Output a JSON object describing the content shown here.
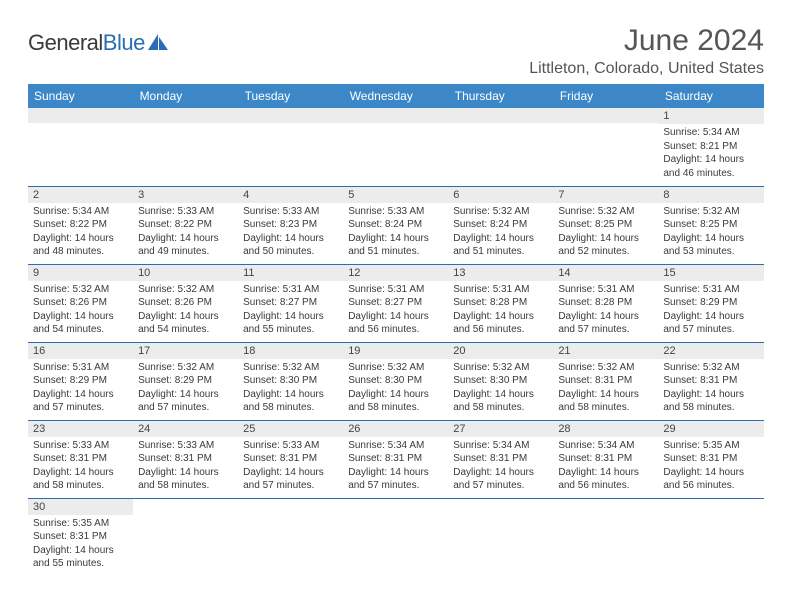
{
  "logo": {
    "text1": "General",
    "text2": "Blue"
  },
  "title": "June 2024",
  "location": "Littleton, Colorado, United States",
  "colors": {
    "header_bg": "#3b87c8",
    "header_text": "#ffffff",
    "border": "#2a6db5",
    "daynum_bg": "#ececec",
    "body_text": "#3a3a3a",
    "title_text": "#555555"
  },
  "days_of_week": [
    "Sunday",
    "Monday",
    "Tuesday",
    "Wednesday",
    "Thursday",
    "Friday",
    "Saturday"
  ],
  "weeks": [
    [
      {
        "n": "",
        "lines": []
      },
      {
        "n": "",
        "lines": []
      },
      {
        "n": "",
        "lines": []
      },
      {
        "n": "",
        "lines": []
      },
      {
        "n": "",
        "lines": []
      },
      {
        "n": "",
        "lines": []
      },
      {
        "n": "1",
        "lines": [
          "Sunrise: 5:34 AM",
          "Sunset: 8:21 PM",
          "Daylight: 14 hours and 46 minutes."
        ]
      }
    ],
    [
      {
        "n": "2",
        "lines": [
          "Sunrise: 5:34 AM",
          "Sunset: 8:22 PM",
          "Daylight: 14 hours and 48 minutes."
        ]
      },
      {
        "n": "3",
        "lines": [
          "Sunrise: 5:33 AM",
          "Sunset: 8:22 PM",
          "Daylight: 14 hours and 49 minutes."
        ]
      },
      {
        "n": "4",
        "lines": [
          "Sunrise: 5:33 AM",
          "Sunset: 8:23 PM",
          "Daylight: 14 hours and 50 minutes."
        ]
      },
      {
        "n": "5",
        "lines": [
          "Sunrise: 5:33 AM",
          "Sunset: 8:24 PM",
          "Daylight: 14 hours and 51 minutes."
        ]
      },
      {
        "n": "6",
        "lines": [
          "Sunrise: 5:32 AM",
          "Sunset: 8:24 PM",
          "Daylight: 14 hours and 51 minutes."
        ]
      },
      {
        "n": "7",
        "lines": [
          "Sunrise: 5:32 AM",
          "Sunset: 8:25 PM",
          "Daylight: 14 hours and 52 minutes."
        ]
      },
      {
        "n": "8",
        "lines": [
          "Sunrise: 5:32 AM",
          "Sunset: 8:25 PM",
          "Daylight: 14 hours and 53 minutes."
        ]
      }
    ],
    [
      {
        "n": "9",
        "lines": [
          "Sunrise: 5:32 AM",
          "Sunset: 8:26 PM",
          "Daylight: 14 hours and 54 minutes."
        ]
      },
      {
        "n": "10",
        "lines": [
          "Sunrise: 5:32 AM",
          "Sunset: 8:26 PM",
          "Daylight: 14 hours and 54 minutes."
        ]
      },
      {
        "n": "11",
        "lines": [
          "Sunrise: 5:31 AM",
          "Sunset: 8:27 PM",
          "Daylight: 14 hours and 55 minutes."
        ]
      },
      {
        "n": "12",
        "lines": [
          "Sunrise: 5:31 AM",
          "Sunset: 8:27 PM",
          "Daylight: 14 hours and 56 minutes."
        ]
      },
      {
        "n": "13",
        "lines": [
          "Sunrise: 5:31 AM",
          "Sunset: 8:28 PM",
          "Daylight: 14 hours and 56 minutes."
        ]
      },
      {
        "n": "14",
        "lines": [
          "Sunrise: 5:31 AM",
          "Sunset: 8:28 PM",
          "Daylight: 14 hours and 57 minutes."
        ]
      },
      {
        "n": "15",
        "lines": [
          "Sunrise: 5:31 AM",
          "Sunset: 8:29 PM",
          "Daylight: 14 hours and 57 minutes."
        ]
      }
    ],
    [
      {
        "n": "16",
        "lines": [
          "Sunrise: 5:31 AM",
          "Sunset: 8:29 PM",
          "Daylight: 14 hours and 57 minutes."
        ]
      },
      {
        "n": "17",
        "lines": [
          "Sunrise: 5:32 AM",
          "Sunset: 8:29 PM",
          "Daylight: 14 hours and 57 minutes."
        ]
      },
      {
        "n": "18",
        "lines": [
          "Sunrise: 5:32 AM",
          "Sunset: 8:30 PM",
          "Daylight: 14 hours and 58 minutes."
        ]
      },
      {
        "n": "19",
        "lines": [
          "Sunrise: 5:32 AM",
          "Sunset: 8:30 PM",
          "Daylight: 14 hours and 58 minutes."
        ]
      },
      {
        "n": "20",
        "lines": [
          "Sunrise: 5:32 AM",
          "Sunset: 8:30 PM",
          "Daylight: 14 hours and 58 minutes."
        ]
      },
      {
        "n": "21",
        "lines": [
          "Sunrise: 5:32 AM",
          "Sunset: 8:31 PM",
          "Daylight: 14 hours and 58 minutes."
        ]
      },
      {
        "n": "22",
        "lines": [
          "Sunrise: 5:32 AM",
          "Sunset: 8:31 PM",
          "Daylight: 14 hours and 58 minutes."
        ]
      }
    ],
    [
      {
        "n": "23",
        "lines": [
          "Sunrise: 5:33 AM",
          "Sunset: 8:31 PM",
          "Daylight: 14 hours and 58 minutes."
        ]
      },
      {
        "n": "24",
        "lines": [
          "Sunrise: 5:33 AM",
          "Sunset: 8:31 PM",
          "Daylight: 14 hours and 58 minutes."
        ]
      },
      {
        "n": "25",
        "lines": [
          "Sunrise: 5:33 AM",
          "Sunset: 8:31 PM",
          "Daylight: 14 hours and 57 minutes."
        ]
      },
      {
        "n": "26",
        "lines": [
          "Sunrise: 5:34 AM",
          "Sunset: 8:31 PM",
          "Daylight: 14 hours and 57 minutes."
        ]
      },
      {
        "n": "27",
        "lines": [
          "Sunrise: 5:34 AM",
          "Sunset: 8:31 PM",
          "Daylight: 14 hours and 57 minutes."
        ]
      },
      {
        "n": "28",
        "lines": [
          "Sunrise: 5:34 AM",
          "Sunset: 8:31 PM",
          "Daylight: 14 hours and 56 minutes."
        ]
      },
      {
        "n": "29",
        "lines": [
          "Sunrise: 5:35 AM",
          "Sunset: 8:31 PM",
          "Daylight: 14 hours and 56 minutes."
        ]
      }
    ],
    [
      {
        "n": "30",
        "lines": [
          "Sunrise: 5:35 AM",
          "Sunset: 8:31 PM",
          "Daylight: 14 hours and 55 minutes."
        ]
      },
      {
        "n": "",
        "lines": []
      },
      {
        "n": "",
        "lines": []
      },
      {
        "n": "",
        "lines": []
      },
      {
        "n": "",
        "lines": []
      },
      {
        "n": "",
        "lines": []
      },
      {
        "n": "",
        "lines": []
      }
    ]
  ]
}
